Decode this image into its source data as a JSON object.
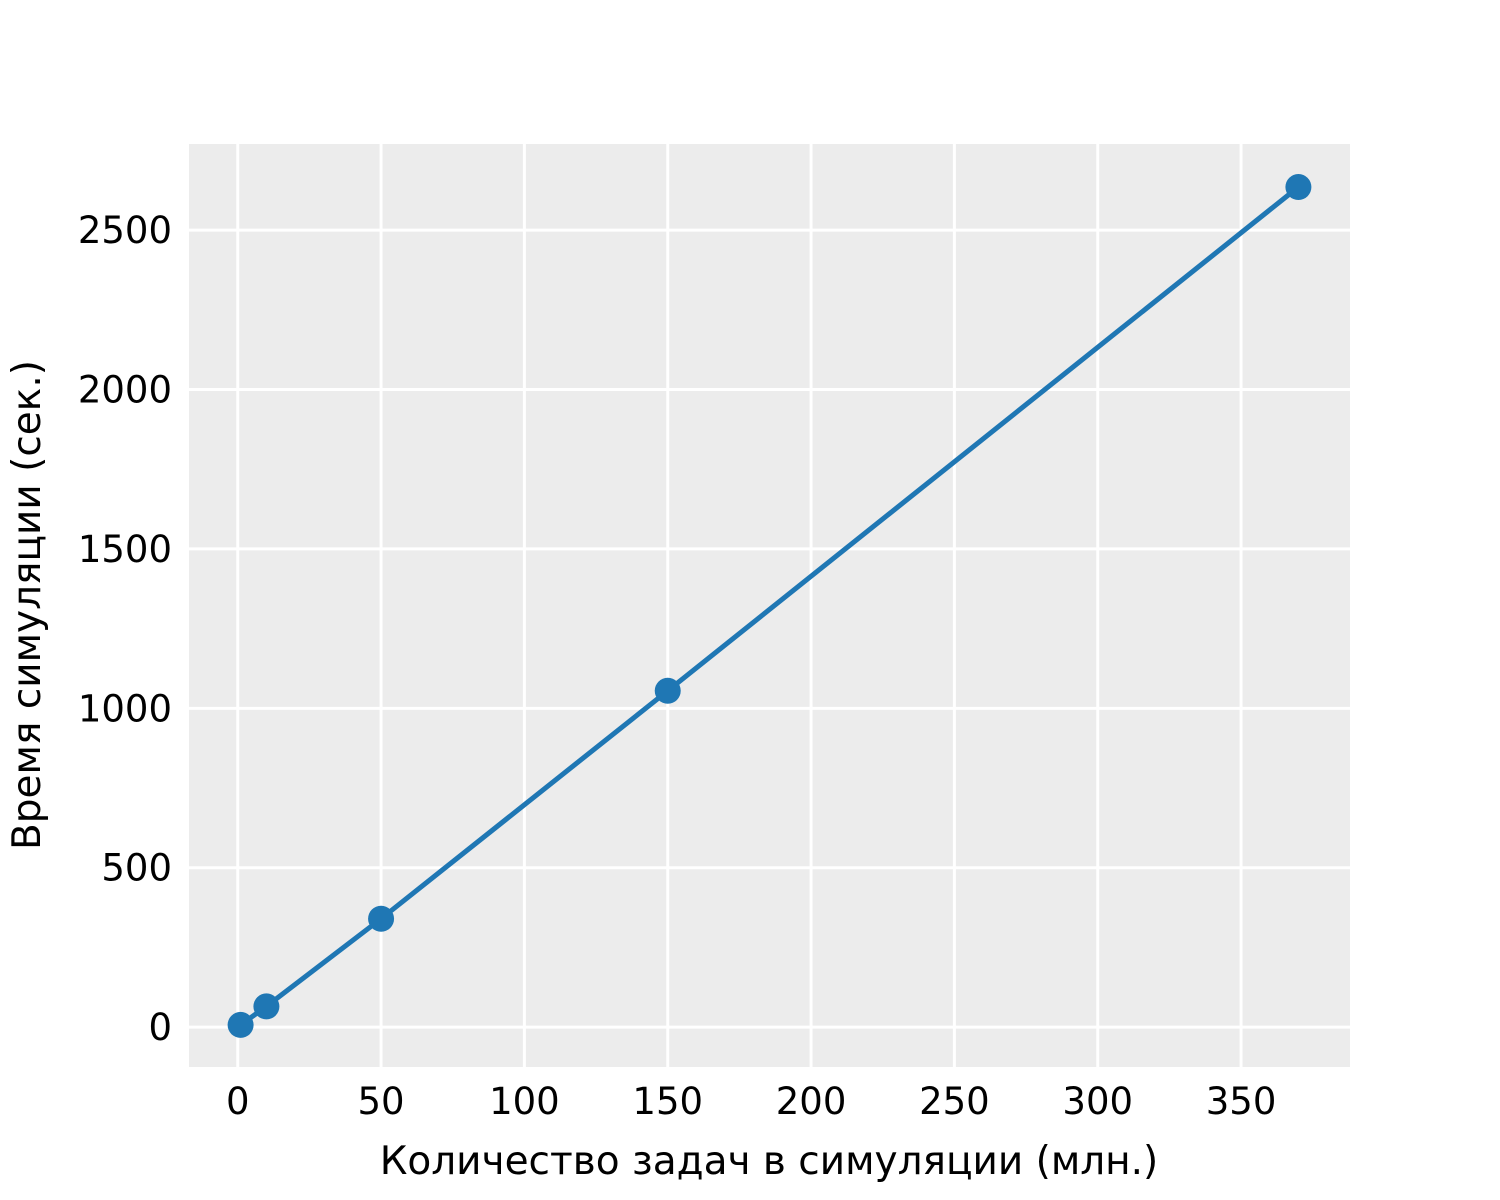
{
  "chart_data": {
    "type": "line",
    "title": "",
    "xlabel": "Количество задач в симуляции (млн.)",
    "ylabel": "Время симуляции (сек.)",
    "xlim": [
      -17,
      388
    ],
    "ylim": [
      -125,
      2770
    ],
    "xticks": [
      0,
      50,
      100,
      150,
      200,
      250,
      300,
      350
    ],
    "yticks": [
      0,
      500,
      1000,
      1500,
      2000,
      2500
    ],
    "grid": true,
    "legend": "none",
    "series": [
      {
        "color": "#1f77b4",
        "x": [
          1,
          10,
          50,
          150,
          370
        ],
        "y": [
          7,
          65,
          340,
          1055,
          2635
        ]
      }
    ],
    "colors": {
      "background": "#ececec",
      "grid": "#ffffff",
      "line": "#1f77b4"
    }
  }
}
